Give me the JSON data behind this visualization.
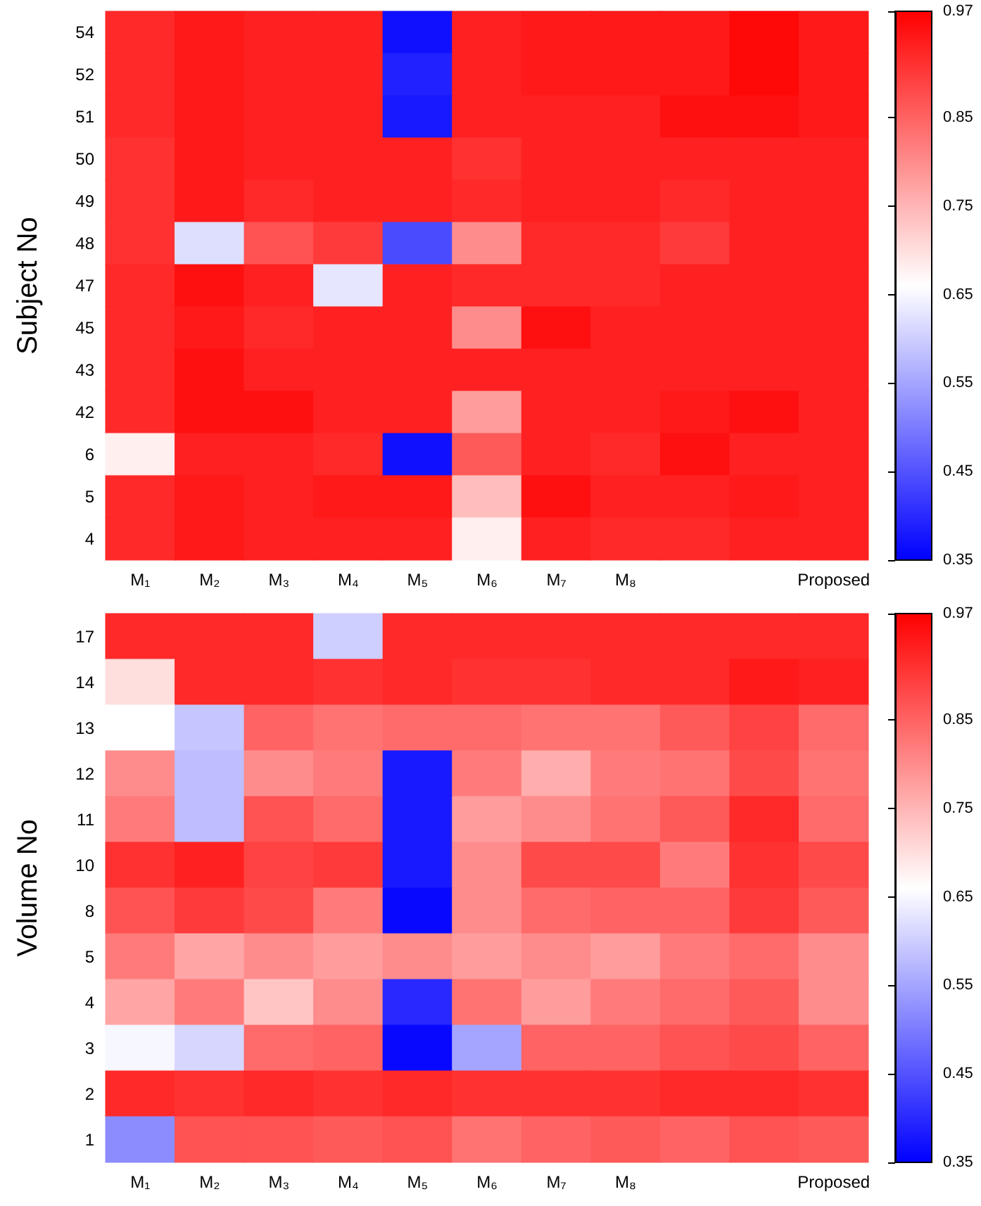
{
  "chart_data": [
    {
      "type": "heatmap",
      "ylabel": "Subject No",
      "categories": [
        "M₁",
        "M₂",
        "M₃",
        "M₄",
        "M₅",
        "M₆",
        "M₇",
        "M₈",
        null,
        null,
        "Proposed"
      ],
      "y_categories": [
        "54",
        "52",
        "51",
        "50",
        "49",
        "48",
        "47",
        "45",
        "43",
        "42",
        "6",
        "5",
        "4"
      ],
      "cells": [
        [
          0.92,
          0.94,
          0.93,
          0.93,
          0.37,
          0.93,
          0.94,
          0.94,
          0.94,
          0.96,
          0.94
        ],
        [
          0.92,
          0.94,
          0.93,
          0.93,
          0.39,
          0.93,
          0.94,
          0.94,
          0.94,
          0.96,
          0.94
        ],
        [
          0.92,
          0.94,
          0.93,
          0.93,
          0.38,
          0.93,
          0.93,
          0.93,
          0.95,
          0.95,
          0.94
        ],
        [
          0.91,
          0.94,
          0.93,
          0.93,
          0.93,
          0.91,
          0.93,
          0.93,
          0.93,
          0.93,
          0.93
        ],
        [
          0.91,
          0.94,
          0.92,
          0.93,
          0.93,
          0.92,
          0.93,
          0.93,
          0.92,
          0.93,
          0.93
        ],
        [
          0.91,
          0.62,
          0.87,
          0.9,
          0.44,
          0.8,
          0.92,
          0.92,
          0.9,
          0.93,
          0.93
        ],
        [
          0.92,
          0.95,
          0.93,
          0.63,
          0.93,
          0.92,
          0.92,
          0.92,
          0.93,
          0.93,
          0.93
        ],
        [
          0.92,
          0.94,
          0.92,
          0.93,
          0.93,
          0.8,
          0.95,
          0.93,
          0.93,
          0.93,
          0.93
        ],
        [
          0.92,
          0.95,
          0.93,
          0.93,
          0.93,
          0.93,
          0.93,
          0.93,
          0.93,
          0.93,
          0.93
        ],
        [
          0.92,
          0.95,
          0.95,
          0.93,
          0.93,
          0.78,
          0.93,
          0.93,
          0.94,
          0.95,
          0.93
        ],
        [
          0.68,
          0.93,
          0.93,
          0.92,
          0.37,
          0.86,
          0.93,
          0.92,
          0.95,
          0.93,
          0.93
        ],
        [
          0.92,
          0.94,
          0.93,
          0.94,
          0.94,
          0.74,
          0.95,
          0.93,
          0.93,
          0.94,
          0.93
        ],
        [
          0.92,
          0.94,
          0.93,
          0.93,
          0.93,
          0.68,
          0.93,
          0.92,
          0.92,
          0.93,
          0.93
        ]
      ],
      "clim": [
        0.35,
        0.97
      ],
      "cticks": [
        0.35,
        0.45,
        0.55,
        0.65,
        0.75,
        0.85,
        0.97
      ]
    },
    {
      "type": "heatmap",
      "ylabel": "Volume No",
      "categories": [
        "M₁",
        "M₂",
        "M₃",
        "M₄",
        "M₅",
        "M₆",
        "M₇",
        "M₈",
        null,
        null,
        "Proposed"
      ],
      "y_categories": [
        "17",
        "14",
        "13",
        "12",
        "11",
        "10",
        "8",
        "5",
        "4",
        "3",
        "2",
        "1"
      ],
      "cells": [
        [
          0.92,
          0.92,
          0.92,
          0.6,
          0.92,
          0.92,
          0.92,
          0.92,
          0.92,
          0.92,
          0.92
        ],
        [
          0.7,
          0.92,
          0.92,
          0.91,
          0.92,
          0.91,
          0.91,
          0.92,
          0.92,
          0.94,
          0.93
        ],
        [
          0.66,
          0.59,
          0.85,
          0.83,
          0.84,
          0.84,
          0.83,
          0.83,
          0.86,
          0.89,
          0.84
        ],
        [
          0.8,
          0.58,
          0.8,
          0.82,
          0.38,
          0.82,
          0.76,
          0.82,
          0.83,
          0.88,
          0.83
        ],
        [
          0.82,
          0.58,
          0.87,
          0.84,
          0.38,
          0.78,
          0.8,
          0.83,
          0.86,
          0.92,
          0.84
        ],
        [
          0.91,
          0.93,
          0.89,
          0.9,
          0.38,
          0.8,
          0.88,
          0.88,
          0.82,
          0.91,
          0.88
        ],
        [
          0.87,
          0.9,
          0.88,
          0.82,
          0.36,
          0.8,
          0.84,
          0.85,
          0.85,
          0.9,
          0.86
        ],
        [
          0.82,
          0.77,
          0.8,
          0.78,
          0.8,
          0.78,
          0.8,
          0.78,
          0.82,
          0.84,
          0.8
        ],
        [
          0.77,
          0.82,
          0.73,
          0.8,
          0.4,
          0.83,
          0.78,
          0.82,
          0.84,
          0.86,
          0.8
        ],
        [
          0.65,
          0.61,
          0.84,
          0.85,
          0.36,
          0.55,
          0.85,
          0.85,
          0.87,
          0.88,
          0.85
        ],
        [
          0.92,
          0.91,
          0.92,
          0.91,
          0.92,
          0.91,
          0.91,
          0.91,
          0.92,
          0.92,
          0.91
        ],
        [
          0.52,
          0.87,
          0.87,
          0.86,
          0.87,
          0.83,
          0.85,
          0.86,
          0.85,
          0.87,
          0.86
        ]
      ],
      "clim": [
        0.35,
        0.97
      ],
      "cticks": [
        0.35,
        0.45,
        0.55,
        0.65,
        0.75,
        0.85,
        0.97
      ]
    }
  ]
}
